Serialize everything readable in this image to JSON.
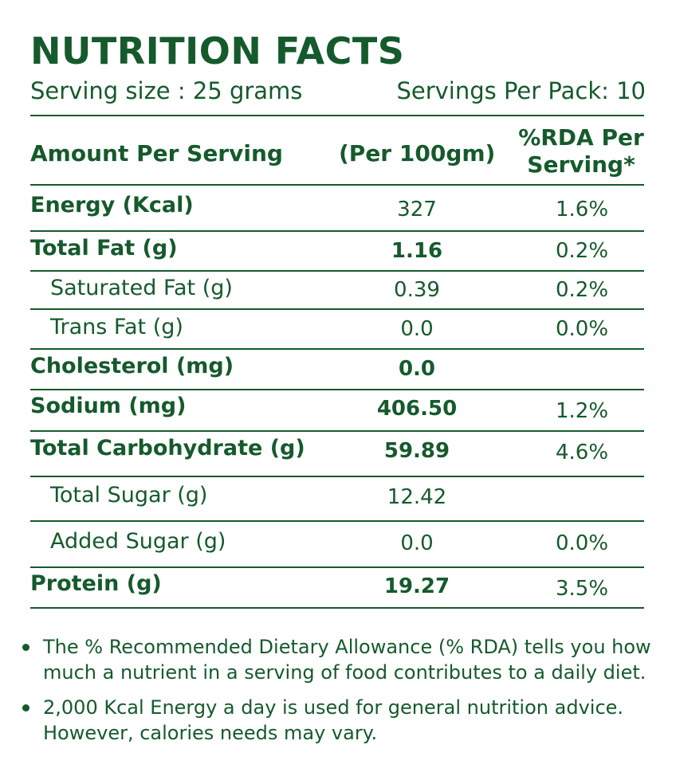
{
  "title": "NUTRITION FACTS",
  "serving_size": "Serving size : 25 grams",
  "servings_per_pack": "Servings Per Pack: 10",
  "header": {
    "amount": "Amount Per Serving",
    "per100": "(Per 100gm)",
    "rda_line1": "%RDA Per",
    "rda_line2": "Serving*"
  },
  "rows": [
    {
      "label": "Energy (Kcal)",
      "value": "327",
      "rda": "1.6%"
    },
    {
      "label": "Total Fat (g)",
      "value": "1.16",
      "rda": "0.2%"
    },
    {
      "label": "Saturated Fat (g)",
      "value": "0.39",
      "rda": "0.2%"
    },
    {
      "label": "Trans Fat (g)",
      "value": "0.0",
      "rda": "0.0%"
    },
    {
      "label": "Cholesterol (mg)",
      "value": "0.0",
      "rda": ""
    },
    {
      "label": "Sodium  (mg)",
      "value": "406.50",
      "rda": "1.2%"
    },
    {
      "label": "Total Carbohydrate (g)",
      "value": "59.89",
      "rda": "4.6%"
    },
    {
      "label": "Total Sugar (g)",
      "value": "12.42",
      "rda": ""
    },
    {
      "label": "Added Sugar (g)",
      "value": "0.0",
      "rda": "0.0%"
    },
    {
      "label": "Protein (g)",
      "value": "19.27",
      "rda": "3.5%"
    }
  ],
  "notes": [
    "The % Recommended Dietary Allowance (% RDA) tells you how much a nutrient in a serving of food contributes to a daily diet.",
    "2,000 Kcal Energy a day is used for general nutrition advice. However, calories needs may vary."
  ],
  "colors": {
    "text": "#155a2c",
    "background": "#ffffff"
  }
}
